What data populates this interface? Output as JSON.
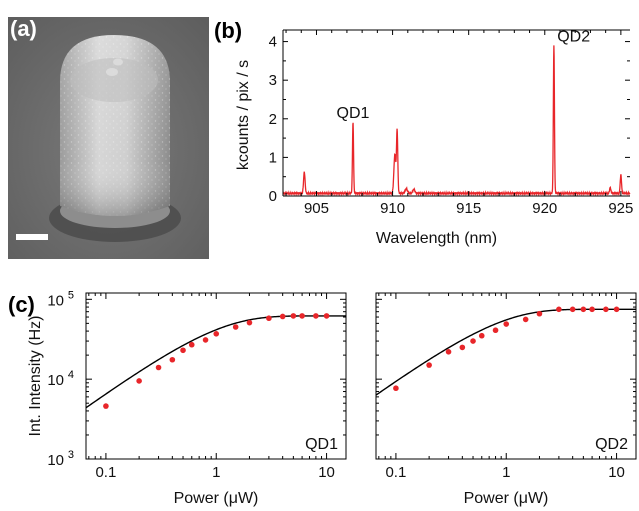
{
  "figure": {
    "panel_labels": [
      "(a)",
      "(b)",
      "(c)"
    ]
  },
  "chart_data": [
    {
      "panel": "(b)",
      "type": "line",
      "xlabel": "Wavelength (nm)",
      "ylabel": "kcounts / pix / s",
      "xlim": [
        902.8,
        925.6
      ],
      "ylim": [
        0,
        4.3
      ],
      "xticks": [
        905,
        910,
        915,
        920,
        925
      ],
      "yticks": [
        0,
        1,
        2,
        3,
        4
      ],
      "color": "#e8262a",
      "baseline": 0.07,
      "peaks": [
        {
          "x": 904.2,
          "y": 0.55,
          "w": 0.07
        },
        {
          "x": 907.4,
          "y": 1.85,
          "w": 0.05
        },
        {
          "x": 910.15,
          "y": 1.0,
          "w": 0.09
        },
        {
          "x": 910.3,
          "y": 1.6,
          "w": 0.06
        },
        {
          "x": 910.9,
          "y": 0.12,
          "w": 0.1
        },
        {
          "x": 911.4,
          "y": 0.1,
          "w": 0.1
        },
        {
          "x": 920.6,
          "y": 3.85,
          "w": 0.05
        },
        {
          "x": 924.3,
          "y": 0.15,
          "w": 0.06
        },
        {
          "x": 925.0,
          "y": 0.48,
          "w": 0.06
        }
      ],
      "annotations": [
        {
          "text": "QD1",
          "x": 907.4,
          "y": 2.02
        },
        {
          "text": "QD2",
          "x": 921.9,
          "y": 4.0
        }
      ]
    },
    {
      "panel": "(c) left",
      "type": "scatter",
      "ylabel": "Int. Intensity (Hz)",
      "xlabel": "Power (μW)",
      "xscale": "log",
      "yscale": "log",
      "xlim": [
        0.066,
        15
      ],
      "ylim": [
        1000,
        120000
      ],
      "xticks": [
        0.1,
        1,
        10
      ],
      "xtick_labels": [
        "0.1",
        "1",
        "10"
      ],
      "yticks": [
        1000,
        10000,
        100000
      ],
      "ytick_labels": [
        {
          "base": "10",
          "exp": "3"
        },
        {
          "base": "10",
          "exp": "4"
        },
        {
          "base": "10",
          "exp": "5"
        }
      ],
      "label": "QD1",
      "points": {
        "x": [
          0.1,
          0.2,
          0.3,
          0.4,
          0.5,
          0.6,
          0.8,
          1.0,
          1.5,
          2.0,
          3.0,
          4.0,
          5.0,
          6.0,
          8.0,
          10.0
        ],
        "y": [
          4600,
          9500,
          14000,
          17500,
          23000,
          27000,
          31000,
          37000,
          45000,
          51000,
          58000,
          61000,
          62000,
          62000,
          62000,
          62000
        ]
      },
      "fit": {
        "saturation": 62000,
        "p_sat": 0.9
      },
      "marker_color": "#e8262a",
      "fit_color": "#000000"
    },
    {
      "panel": "(c) right",
      "type": "scatter",
      "xlabel": "Power (μW)",
      "xscale": "log",
      "yscale": "log",
      "xlim": [
        0.066,
        15
      ],
      "ylim": [
        1000,
        120000
      ],
      "xticks": [
        0.1,
        1,
        10
      ],
      "xtick_labels": [
        "0.1",
        "1",
        "10"
      ],
      "label": "QD2",
      "points": {
        "x": [
          0.1,
          0.2,
          0.3,
          0.4,
          0.5,
          0.6,
          0.8,
          1.0,
          1.5,
          2.0,
          3.0,
          4.0,
          5.0,
          6.0,
          8.0,
          10.0
        ],
        "y": [
          7700,
          15000,
          22000,
          25000,
          30000,
          35000,
          41000,
          49000,
          56000,
          66000,
          75000,
          75000,
          75000,
          75000,
          75000,
          75000
        ]
      },
      "fit": {
        "saturation": 75000,
        "p_sat": 0.75
      },
      "marker_color": "#e8262a",
      "fit_color": "#000000"
    }
  ]
}
